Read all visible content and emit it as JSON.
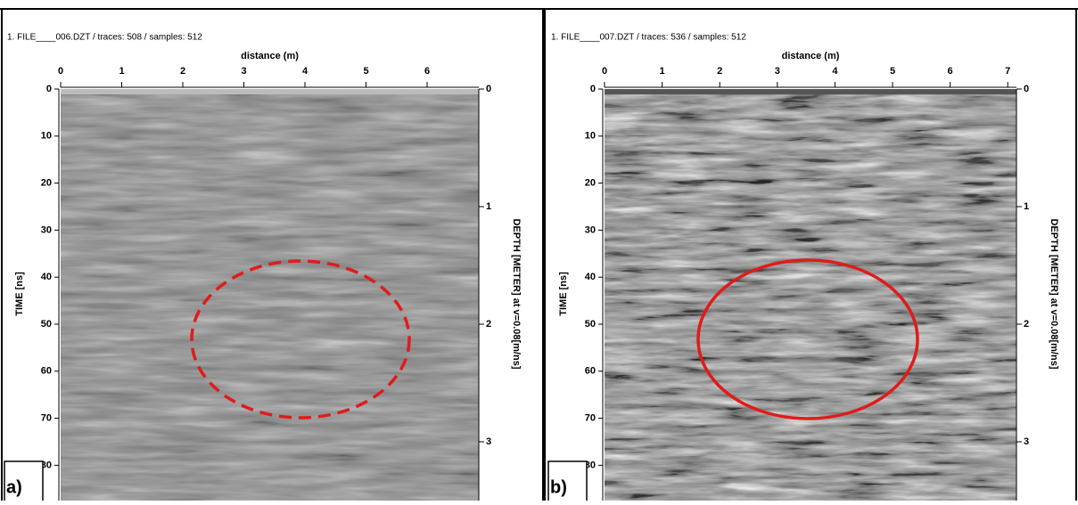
{
  "panels": [
    {
      "header": "1. FILE____006.DZT / traces: 508 / samples: 512",
      "x_label": "distance (m)",
      "x_ticks": [
        0,
        1,
        2,
        3,
        4,
        5,
        6
      ],
      "y_label": "TIME [ns]",
      "y_ticks": [
        0,
        10,
        20,
        30,
        40,
        50,
        60,
        70,
        80
      ],
      "depth_label": "DEPTH [METER] at v=0.08[m/ns]",
      "depth_ticks": [
        0,
        1,
        2,
        3
      ],
      "panel_label": "a)"
    },
    {
      "header": "1. FILE____007.DZT / traces: 536 / samples: 512",
      "x_label": "distance (m)",
      "x_ticks": [
        0,
        1,
        2,
        3,
        4,
        5,
        6,
        7
      ],
      "y_label": "TIME [ns]",
      "y_ticks": [
        0,
        10,
        20,
        30,
        40,
        50,
        60,
        70,
        80
      ],
      "depth_label": "DEPTH [METER] at v=0.08[m/ns]",
      "depth_ticks": [
        0,
        1,
        2,
        3
      ],
      "panel_label": "b)"
    }
  ]
}
